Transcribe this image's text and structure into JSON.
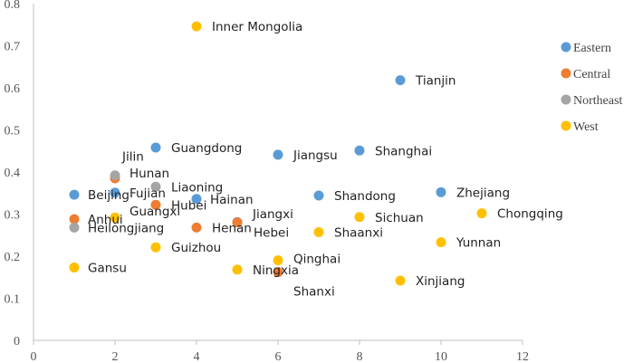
{
  "chart_data": {
    "type": "scatter",
    "title": "",
    "xlabel": "",
    "ylabel": "",
    "xlim": [
      0,
      12
    ],
    "ylim": [
      0,
      0.8
    ],
    "x_ticks": [
      "0",
      "2",
      "4",
      "6",
      "8",
      "10",
      "12"
    ],
    "y_ticks": [
      "0",
      "0.1",
      "0.2",
      "0.3",
      "0.4",
      "0.5",
      "0.6",
      "0.7",
      "0.8"
    ],
    "grid": false,
    "legend_position": "right",
    "series": [
      {
        "name": "Eastern",
        "color": "#5B9BD5",
        "points": [
          {
            "label": "Beijing",
            "x": 1,
            "y": 0.346
          },
          {
            "label": "Fujian",
            "x": 2,
            "y": 0.351
          },
          {
            "label": "Guangdong",
            "x": 3,
            "y": 0.458
          },
          {
            "label": "Hainan",
            "x": 4,
            "y": 0.336
          },
          {
            "label": "Hebei",
            "x": 5,
            "y": 0.281
          },
          {
            "label": "Jiangsu",
            "x": 6,
            "y": 0.441
          },
          {
            "label": "Shandong",
            "x": 7,
            "y": 0.344
          },
          {
            "label": "Shanghai",
            "x": 8,
            "y": 0.451
          },
          {
            "label": "Tianjin",
            "x": 9,
            "y": 0.618
          },
          {
            "label": "Zhejiang",
            "x": 10,
            "y": 0.352
          }
        ]
      },
      {
        "name": "Central",
        "color": "#ED7D31",
        "points": [
          {
            "label": "Anhui",
            "x": 1,
            "y": 0.288
          },
          {
            "label": "Hunan",
            "x": 2,
            "y": 0.385
          },
          {
            "label": "Hubei",
            "x": 3,
            "y": 0.322
          },
          {
            "label": "Henan",
            "x": 4,
            "y": 0.268
          },
          {
            "label": "Jiangxi",
            "x": 5,
            "y": 0.28
          },
          {
            "label": "Shanxi",
            "x": 6,
            "y": 0.162
          }
        ]
      },
      {
        "name": "Northeast",
        "color": "#A5A5A5",
        "points": [
          {
            "label": "Heilongjiang",
            "x": 1,
            "y": 0.268
          },
          {
            "label": "Jilin",
            "x": 2,
            "y": 0.392
          },
          {
            "label": "Liaoning",
            "x": 3,
            "y": 0.365
          }
        ]
      },
      {
        "name": "West",
        "color": "#FFC000",
        "points": [
          {
            "label": "Gansu",
            "x": 1,
            "y": 0.173
          },
          {
            "label": "Guangxi",
            "x": 2,
            "y": 0.292
          },
          {
            "label": "Guizhou",
            "x": 3,
            "y": 0.221
          },
          {
            "label": "Inner Mongolia",
            "x": 4,
            "y": 0.746
          },
          {
            "label": "Ningxia",
            "x": 5,
            "y": 0.168
          },
          {
            "label": "Qinghai",
            "x": 6,
            "y": 0.19
          },
          {
            "label": "Shaanxi",
            "x": 7,
            "y": 0.257
          },
          {
            "label": "Sichuan",
            "x": 8,
            "y": 0.293
          },
          {
            "label": "Xinjiang",
            "x": 9,
            "y": 0.142
          },
          {
            "label": "Yunnan",
            "x": 10,
            "y": 0.233
          },
          {
            "label": "Chongqing",
            "x": 11,
            "y": 0.302
          }
        ]
      }
    ]
  }
}
